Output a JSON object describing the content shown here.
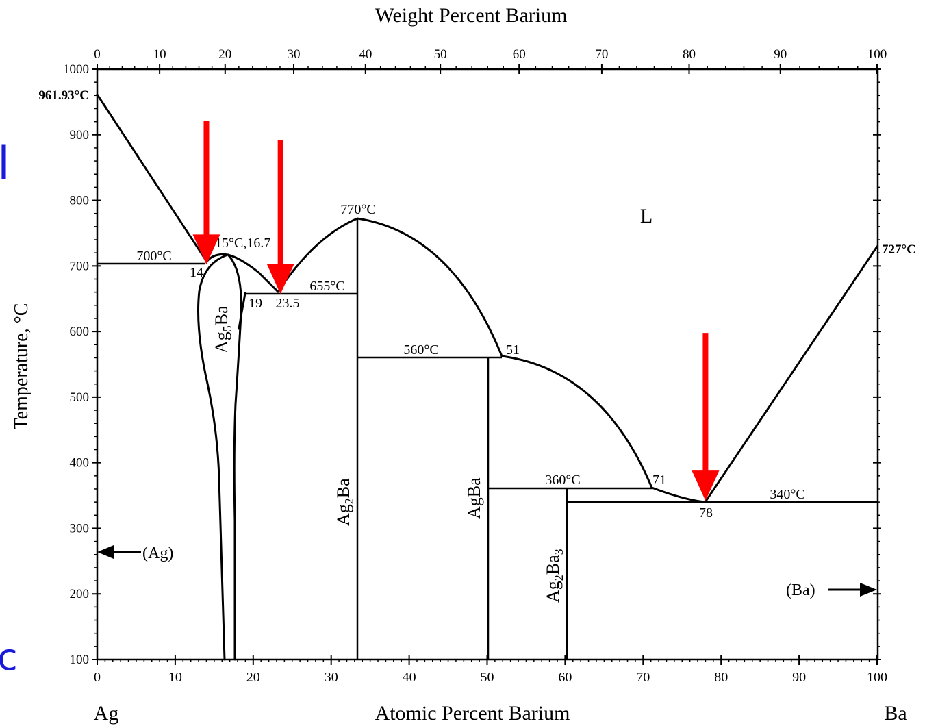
{
  "chart_data": {
    "type": "phase-diagram",
    "title": "Weight Percent Barium",
    "xlabel": "Atomic Percent Barium",
    "ylabel": "Temperature, °C",
    "x_unit_left": "Ag",
    "x_unit_right": "Ba",
    "xlim": [
      0,
      100
    ],
    "ylim": [
      100,
      1000
    ],
    "x_ticks": [
      "0",
      "10",
      "20",
      "30",
      "40",
      "50",
      "60",
      "70",
      "80",
      "90",
      "100"
    ],
    "y_ticks": [
      "100",
      "200",
      "300",
      "400",
      "500",
      "600",
      "700",
      "800",
      "900",
      "1000"
    ],
    "wt_ticks": [
      {
        "wt": "0",
        "at": 0
      },
      {
        "wt": "10",
        "at": 8.0
      },
      {
        "wt": "20",
        "at": 16.4
      },
      {
        "wt": "30",
        "at": 25.2
      },
      {
        "wt": "40",
        "at": 34.4
      },
      {
        "wt": "50",
        "at": 44.0
      },
      {
        "wt": "60",
        "at": 54.1
      },
      {
        "wt": "70",
        "at": 64.7
      },
      {
        "wt": "80",
        "at": 75.9
      },
      {
        "wt": "90",
        "at": 87.6
      },
      {
        "wt": "100",
        "at": 100
      }
    ],
    "invariants": [
      {
        "label": "700°C",
        "type": "eutectic",
        "T": 700,
        "x_range": [
          0,
          14
        ]
      },
      {
        "label": "655°C",
        "type": "eutectic",
        "T": 655,
        "x_range": [
          19,
          33.3
        ]
      },
      {
        "label": "560°C",
        "type": "peritectic",
        "T": 560,
        "x_range": [
          33.3,
          51
        ]
      },
      {
        "label": "360°C",
        "type": "peritectic",
        "T": 360,
        "x_range": [
          50,
          71
        ]
      },
      {
        "label": "340°C",
        "type": "eutectic",
        "T": 340,
        "x_range": [
          60,
          100
        ]
      }
    ],
    "melting_points": [
      {
        "label": "961.93°C",
        "x": 0,
        "T": 961.93
      },
      {
        "label": "727°C",
        "x": 100,
        "T": 727
      },
      {
        "label": "770°C",
        "x": 33.3,
        "T": 770
      },
      {
        "label": "715°C,16.7",
        "x": 16.7,
        "T": 715
      }
    ],
    "composition_labels": [
      "14",
      "19",
      "23.5",
      "51",
      "71",
      "78"
    ],
    "phases": [
      "L",
      "Ag5Ba",
      "Ag2Ba",
      "AgBa",
      "Ag2Ba3",
      "(Ag)",
      "(Ba)"
    ],
    "liquidus": [
      {
        "from": [
          0,
          961.93
        ],
        "to": [
          14,
          700
        ]
      },
      {
        "from": [
          14,
          700
        ],
        "peak": [
          16.7,
          715
        ],
        "to": [
          23.5,
          655
        ]
      },
      {
        "from": [
          23.5,
          655
        ],
        "peak": [
          33.3,
          770
        ],
        "to": [
          51,
          560
        ]
      },
      {
        "from": [
          51,
          560
        ],
        "to": [
          71,
          360
        ]
      },
      {
        "from": [
          71,
          360
        ],
        "to": [
          78,
          340
        ]
      },
      {
        "from": [
          78,
          340
        ],
        "to": [
          100,
          727
        ]
      }
    ],
    "highlight_arrows": [
      {
        "x": 14,
        "T": 700,
        "color": "#ff0000"
      },
      {
        "x": 23.5,
        "T": 655,
        "color": "#ff0000"
      },
      {
        "x": 78,
        "T": 340,
        "color": "#ff0000"
      }
    ]
  },
  "labels": {
    "weight_title": "Weight Percent Barium",
    "atomic_title": "Atomic Percent Barium",
    "y_title": "Temperature, °C",
    "ag": "Ag",
    "ba": "Ba",
    "t_ag": "961.93°C",
    "t_ba": "727°C",
    "t_770": "770°C",
    "t_715": "715°C,16.7",
    "t_700": "700°C",
    "t_655": "655°C",
    "t_560": "560°C",
    "t_360": "360°C",
    "t_340": "340°C",
    "c14": "14",
    "c19": "19",
    "c23": "23.5",
    "c51": "51",
    "c71": "71",
    "c78": "78",
    "liquid": "L",
    "ag_phase": "(Ag)",
    "ba_phase": "(Ba)"
  },
  "side": {
    "left_top": "l",
    "left_bottom": "c"
  },
  "colors": {
    "line": "#000000",
    "arrow": "#ff0000",
    "side_text": "#1a1adb"
  }
}
